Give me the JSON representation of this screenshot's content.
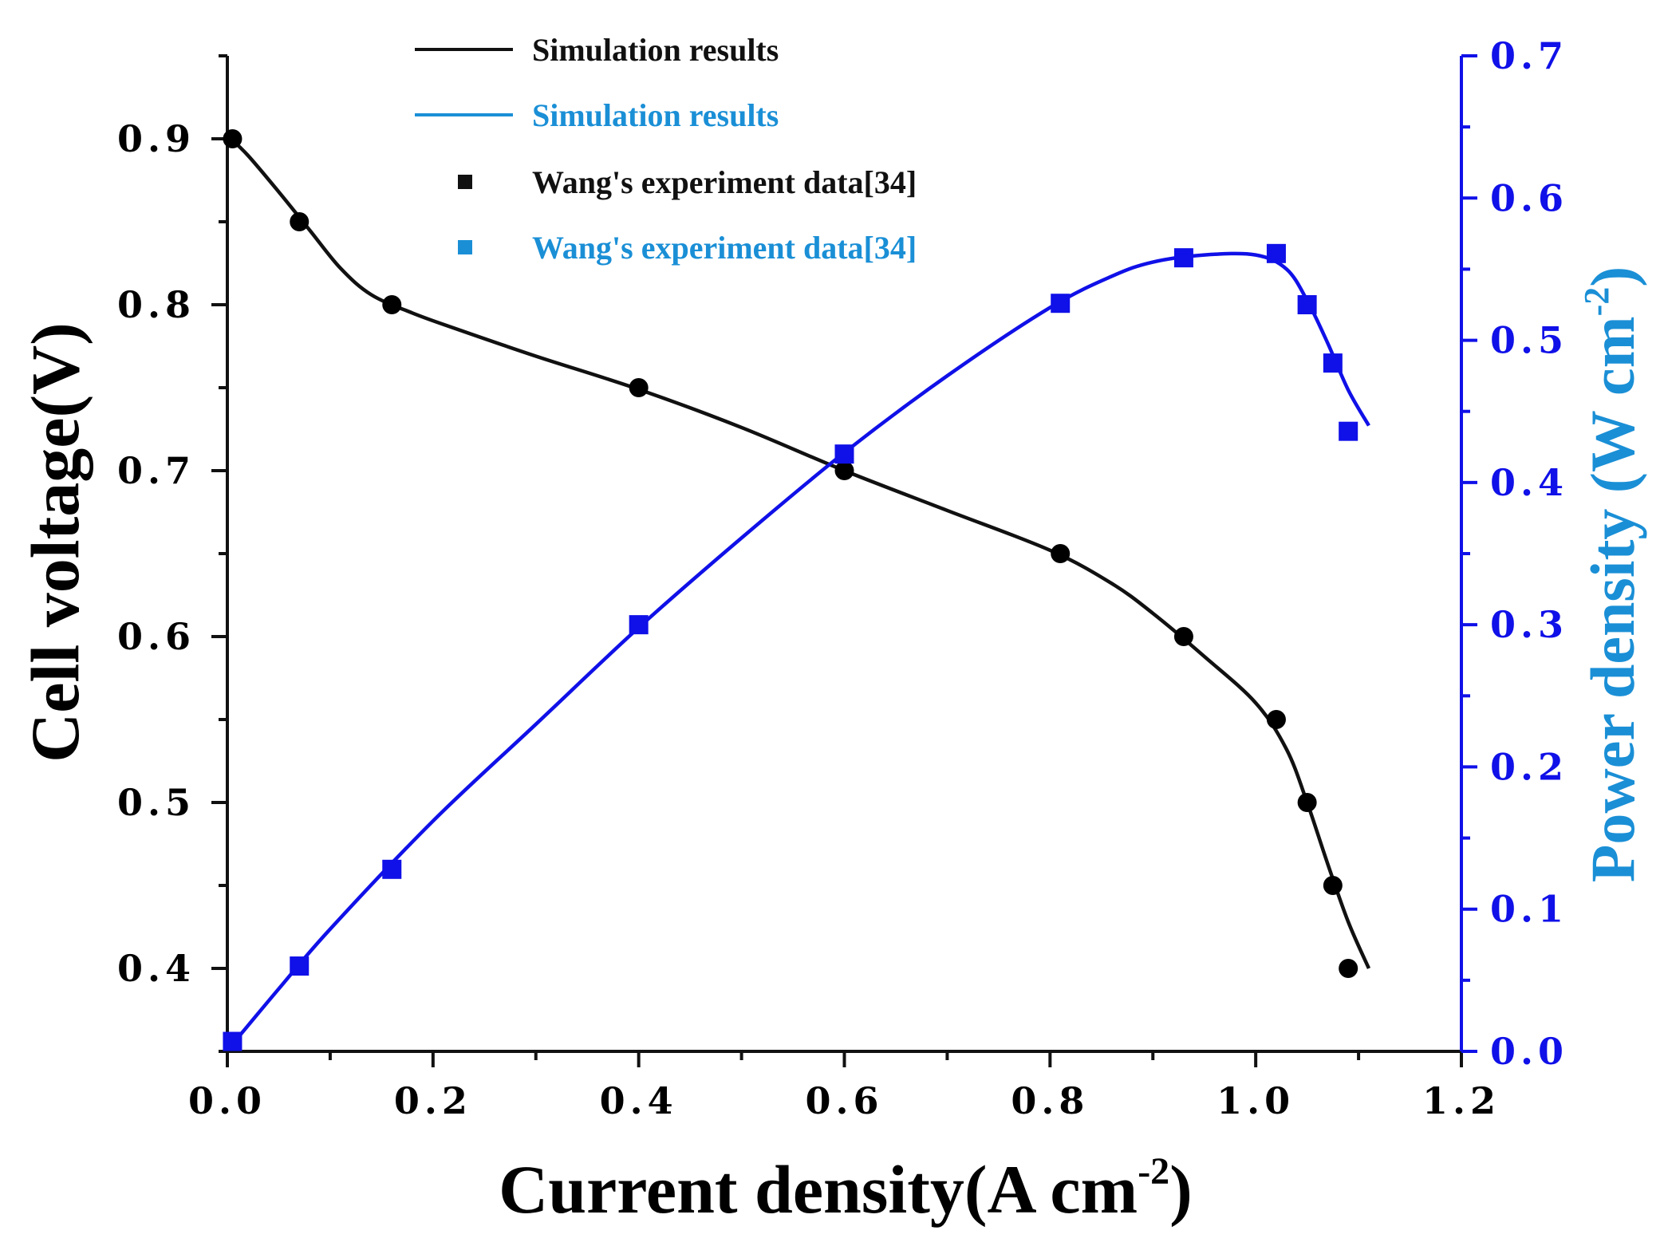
{
  "chart_data": {
    "type": "line",
    "x_axis": {
      "label_main": "Current density(A cm",
      "label_sup": "-2",
      "label_end": ")",
      "range": [
        0.0,
        1.2
      ],
      "ticks": [
        "0.0",
        "0.2",
        "0.4",
        "0.6",
        "0.8",
        "1.0",
        "1.2"
      ],
      "tick_values": [
        0.0,
        0.2,
        0.4,
        0.6,
        0.8,
        1.0,
        1.2
      ]
    },
    "y_left": {
      "label": "Cell voltage(V)",
      "range": [
        0.35,
        0.95
      ],
      "ticks": [
        "0.4",
        "0.5",
        "0.6",
        "0.7",
        "0.8",
        "0.9"
      ],
      "tick_values": [
        0.4,
        0.5,
        0.6,
        0.7,
        0.8,
        0.9
      ]
    },
    "y_right": {
      "label_main": "Power density (W  cm",
      "label_sup": "-2",
      "label_end": ")",
      "range": [
        0.0,
        0.7
      ],
      "ticks": [
        "0.0",
        "0.1",
        "0.2",
        "0.3",
        "0.4",
        "0.5",
        "0.6",
        "0.7"
      ],
      "tick_values": [
        0.0,
        0.1,
        0.2,
        0.3,
        0.4,
        0.5,
        0.6,
        0.7
      ]
    },
    "series": [
      {
        "name": "Simulation results",
        "kind": "line",
        "axis": "left",
        "color": "#111111",
        "x": [
          0.0,
          0.02,
          0.05,
          0.08,
          0.11,
          0.14,
          0.18,
          0.22,
          0.3,
          0.4,
          0.5,
          0.6,
          0.7,
          0.8,
          0.86,
          0.9,
          0.95,
          1.0,
          1.03,
          1.05,
          1.07,
          1.09,
          1.11
        ],
        "y": [
          0.902,
          0.89,
          0.868,
          0.845,
          0.822,
          0.806,
          0.795,
          0.786,
          0.769,
          0.749,
          0.726,
          0.7,
          0.676,
          0.652,
          0.632,
          0.614,
          0.588,
          0.56,
          0.532,
          0.5,
          0.463,
          0.428,
          0.4
        ]
      },
      {
        "name": "Simulation results",
        "kind": "line",
        "axis": "right",
        "color": "#1010e8",
        "x": [
          0.005,
          0.05,
          0.1,
          0.2,
          0.3,
          0.4,
          0.5,
          0.6,
          0.7,
          0.8,
          0.86,
          0.9,
          0.95,
          1.0,
          1.03,
          1.05,
          1.07,
          1.09,
          1.11
        ],
        "y": [
          0.005,
          0.044,
          0.086,
          0.162,
          0.23,
          0.298,
          0.361,
          0.421,
          0.475,
          0.523,
          0.545,
          0.555,
          0.56,
          0.56,
          0.55,
          0.528,
          0.498,
          0.465,
          0.44
        ]
      },
      {
        "name": "Wang's experiment data[34]",
        "kind": "scatter",
        "marker": "circle",
        "axis": "left",
        "color": "#000000",
        "x": [
          0.005,
          0.07,
          0.16,
          0.4,
          0.6,
          0.81,
          0.93,
          1.02,
          1.05,
          1.075,
          1.09
        ],
        "y": [
          0.9,
          0.85,
          0.8,
          0.75,
          0.7,
          0.65,
          0.6,
          0.55,
          0.5,
          0.45,
          0.4
        ]
      },
      {
        "name": "Wang's experiment data[34]",
        "kind": "scatter",
        "marker": "square",
        "axis": "right",
        "color": "#1010e8",
        "x": [
          0.005,
          0.07,
          0.16,
          0.4,
          0.6,
          0.81,
          0.93,
          1.02,
          1.05,
          1.075,
          1.09
        ],
        "y": [
          0.007,
          0.06,
          0.128,
          0.3,
          0.42,
          0.526,
          0.558,
          0.561,
          0.525,
          0.484,
          0.436
        ]
      }
    ],
    "legend": {
      "placement": "top-center",
      "entries": [
        {
          "label": "Simulation results",
          "symbol": "line",
          "color": "#111111",
          "text_color": "#111111"
        },
        {
          "label": "Simulation results",
          "symbol": "line",
          "color": "#1a8fd6",
          "text_color": "#1a8fd6"
        },
        {
          "label": "Wang's experiment data[34]",
          "symbol": "square",
          "color": "#111111",
          "text_color": "#111111"
        },
        {
          "label": "Wang's experiment data[34]",
          "symbol": "square",
          "color": "#1a8fd6",
          "text_color": "#1a8fd6"
        }
      ]
    },
    "colors": {
      "left_axis": "#111111",
      "right_axis": "#1010e8",
      "right_title": "#1a8fd6"
    }
  }
}
